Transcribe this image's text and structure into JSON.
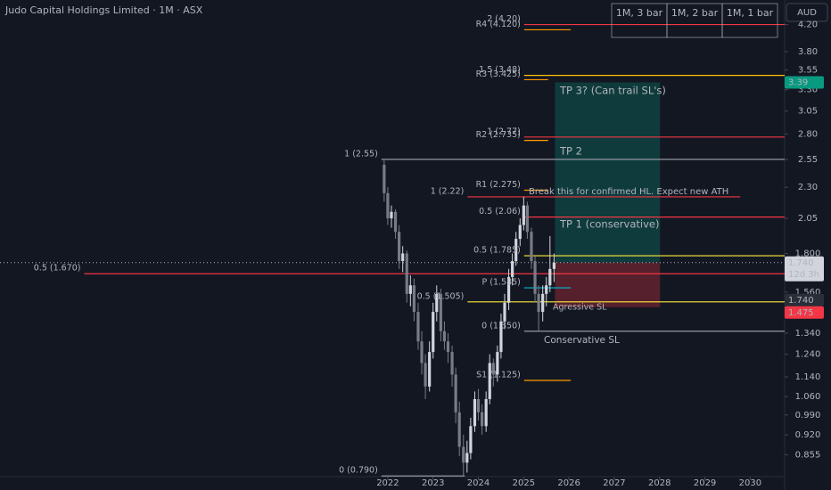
{
  "chart_data": {
    "type": "candlestick",
    "title": "Judo Capital Holdings Limited · 1M · ASX",
    "currency": "AUD",
    "log": true,
    "up_color": "#d1d4dc",
    "down_color": "#787b86",
    "x": [
      2021.92,
      2022.0,
      2022.08,
      2022.17,
      2022.25,
      2022.33,
      2022.42,
      2022.5,
      2022.58,
      2022.67,
      2022.75,
      2022.83,
      2022.92,
      2023.0,
      2023.08,
      2023.17,
      2023.25,
      2023.33,
      2023.42,
      2023.5,
      2023.58,
      2023.67,
      2023.75,
      2023.83,
      2023.92,
      2024.0,
      2024.08,
      2024.17,
      2024.25,
      2024.33,
      2024.42,
      2024.5,
      2024.58,
      2024.67,
      2024.75,
      2024.83,
      2024.92,
      2025.0,
      2025.08,
      2025.17,
      2025.25,
      2025.33,
      2025.42,
      2025.5,
      2025.58,
      2025.67
    ],
    "open": [
      2.5,
      2.25,
      2.05,
      2.1,
      1.95,
      1.75,
      1.8,
      1.55,
      1.6,
      1.45,
      1.3,
      1.2,
      1.1,
      1.25,
      1.45,
      1.55,
      1.35,
      1.3,
      1.25,
      1.15,
      1.0,
      0.88,
      0.83,
      0.86,
      0.95,
      1.05,
      1.0,
      0.95,
      1.05,
      1.2,
      1.15,
      1.25,
      1.4,
      1.5,
      1.65,
      1.75,
      1.9,
      2.0,
      2.15,
      1.95,
      1.75,
      1.55,
      1.45,
      1.55,
      1.6,
      1.7
    ],
    "high": [
      2.55,
      2.3,
      2.15,
      2.12,
      2.0,
      1.85,
      1.82,
      1.66,
      1.64,
      1.5,
      1.35,
      1.24,
      1.3,
      1.5,
      1.6,
      1.58,
      1.4,
      1.34,
      1.28,
      1.18,
      1.04,
      0.92,
      0.9,
      0.98,
      1.08,
      1.09,
      1.03,
      1.08,
      1.24,
      1.22,
      1.28,
      1.44,
      1.55,
      1.7,
      1.8,
      1.95,
      2.05,
      2.22,
      2.18,
      1.98,
      1.78,
      1.6,
      1.6,
      1.65,
      1.92,
      1.8
    ],
    "low": [
      2.18,
      2.0,
      1.98,
      1.9,
      1.7,
      1.68,
      1.5,
      1.48,
      1.4,
      1.26,
      1.15,
      1.05,
      1.08,
      1.22,
      1.4,
      1.3,
      1.26,
      1.2,
      1.1,
      0.96,
      0.85,
      0.79,
      0.8,
      0.84,
      0.93,
      0.97,
      0.92,
      0.93,
      1.03,
      1.1,
      1.12,
      1.22,
      1.36,
      1.46,
      1.6,
      1.72,
      1.85,
      1.96,
      1.9,
      1.7,
      1.5,
      1.35,
      1.4,
      1.48,
      1.56,
      1.62
    ],
    "close": [
      2.25,
      2.05,
      2.1,
      1.95,
      1.75,
      1.8,
      1.55,
      1.6,
      1.45,
      1.3,
      1.2,
      1.1,
      1.25,
      1.45,
      1.55,
      1.35,
      1.3,
      1.25,
      1.15,
      1.0,
      0.88,
      0.83,
      0.86,
      0.95,
      1.05,
      1.0,
      0.95,
      1.05,
      1.2,
      1.15,
      1.25,
      1.4,
      1.5,
      1.65,
      1.75,
      1.9,
      2.0,
      2.15,
      1.95,
      1.75,
      1.55,
      1.45,
      1.55,
      1.6,
      1.7,
      1.74
    ],
    "xlim": [
      2013.44,
      2030.76
    ],
    "xticks": [
      2022,
      2023,
      2024,
      2025,
      2026,
      2027,
      2028,
      2029,
      2030
    ],
    "ylim": [
      0.788,
      4.6
    ],
    "yticks": [
      {
        "value": 4.2,
        "label": "4.20"
      },
      {
        "value": 3.8,
        "label": "3.80"
      },
      3.55,
      {
        "value": 3.3,
        "label": "3.30"
      },
      3.05,
      {
        "value": 2.8,
        "label": "2.80"
      },
      2.55,
      {
        "value": 2.3,
        "label": "2.30"
      },
      2.05,
      {
        "value": 1.8,
        "label": "1.800"
      },
      {
        "value": 1.56,
        "label": "1.560"
      },
      {
        "value": 1.44,
        "label": "1.440"
      },
      {
        "value": 1.34,
        "label": "1.340"
      },
      {
        "value": 1.24,
        "label": "1.240"
      },
      {
        "value": 1.14,
        "label": "1.140"
      },
      {
        "value": 1.06,
        "label": "1.060"
      },
      {
        "value": 0.99,
        "label": "0.990"
      },
      {
        "value": 0.92,
        "label": "0.920"
      },
      0.855
    ],
    "levels": [
      {
        "label": "2 (4.20)",
        "value": 4.2,
        "color": "#f23645",
        "x0": 2025.01,
        "x1": 2030.76
      },
      {
        "label": "R4 (4.120)",
        "value": 4.12,
        "color": "#ff9800",
        "x0": 2025.01,
        "x1": 2026.04
      },
      {
        "label": "1.5 (3.48)",
        "value": 3.48,
        "color": "#ffc107",
        "x0": 2025.01,
        "x1": 2030.76
      },
      {
        "label": "R3 (3.425)",
        "value": 3.425,
        "color": "#ff9800",
        "x0": 2025.01,
        "x1": 2025.54
      },
      {
        "label": "1 (2.77)",
        "value": 2.77,
        "color": "#f23645",
        "x0": 2025.01,
        "x1": 2030.76
      },
      {
        "label": "R2 (2.735)",
        "value": 2.735,
        "color": "#ff9800",
        "x0": 2025.01,
        "x1": 2025.54
      },
      {
        "label": "1 (2.55)",
        "value": 2.55,
        "color": "#9598a1",
        "x0": 2021.86,
        "x1": 2030.76
      },
      {
        "label": "1 (2.22)",
        "value": 2.22,
        "color": "#f23645",
        "x0": 2023.76,
        "x1": 2029.78
      },
      {
        "label": "R1 (2.275)",
        "value": 2.275,
        "color": "#ff9800",
        "x0": 2025.01,
        "x1": 2025.54
      },
      {
        "label": "0.5 (2.06)",
        "value": 2.06,
        "color": "#f23645",
        "x0": 2025.01,
        "x1": 2030.76
      },
      {
        "label": "0.5 (1.785)",
        "value": 1.785,
        "color": "#ffeb3b",
        "x0": 2025.01,
        "x1": 2030.76
      },
      {
        "label": "0.5 (1.670)",
        "value": 1.67,
        "color": "#f23645",
        "x0": 2015.3,
        "x1": 2030.76
      },
      {
        "label": "P (1.585)",
        "value": 1.585,
        "color": "#00bcd4",
        "x0": 2025.01,
        "x1": 2026.04
      },
      {
        "label": "0.5 (1.505)",
        "value": 1.505,
        "color": "#ffeb3b",
        "x0": 2023.76,
        "x1": 2030.76
      },
      {
        "label": "0 (1.350)",
        "value": 1.35,
        "color": "#9598a1",
        "x0": 2025.01,
        "x1": 2030.76
      },
      {
        "label": "S1 (1.125)",
        "value": 1.125,
        "color": "#ff9800",
        "x0": 2025.01,
        "x1": 2026.04
      },
      {
        "label": "0 (0.790)",
        "value": 0.79,
        "color": "#9598a1",
        "x0": 2021.86,
        "x1": 2023.7
      }
    ],
    "position": {
      "entry": 1.74,
      "target": 3.39,
      "stop": 1.475,
      "x0": 2025.69,
      "x1": 2028.01,
      "target_color": "#089981",
      "stop_color": "#f23645"
    },
    "price_badges": [
      {
        "value": 3.39,
        "color": "#089981"
      },
      {
        "value": 1.74,
        "label": "1.740",
        "color": "#d1d4dc"
      },
      {
        "value": 1.74,
        "label": "1.740",
        "color": "#2a2e39"
      },
      {
        "value": 1.475,
        "color": "#f23645"
      }
    ],
    "countdown": "12d 3h",
    "annotations": [
      {
        "text": "Break this for confirmed HL. Expect new ATH",
        "color": "#ff8a95"
      },
      {
        "text": "TP 3? (Can trail SL's)",
        "color": "#f23645"
      },
      {
        "text": "TP 2",
        "color": "#f23645"
      },
      {
        "text": "TP 1 (conservative)",
        "color": "#f23645"
      },
      {
        "text": "Agressive SL",
        "color": "#f23645"
      },
      {
        "text": "Conservative SL",
        "color": "#f23645"
      }
    ],
    "intervals": [
      {
        "label": "1M, 3 bar",
        "color": "#9c27b0"
      },
      {
        "label": "1M, 2 bar",
        "color": "#7e57c2"
      },
      {
        "label": "1M, 1 bar",
        "color": "#ff9800"
      }
    ]
  }
}
